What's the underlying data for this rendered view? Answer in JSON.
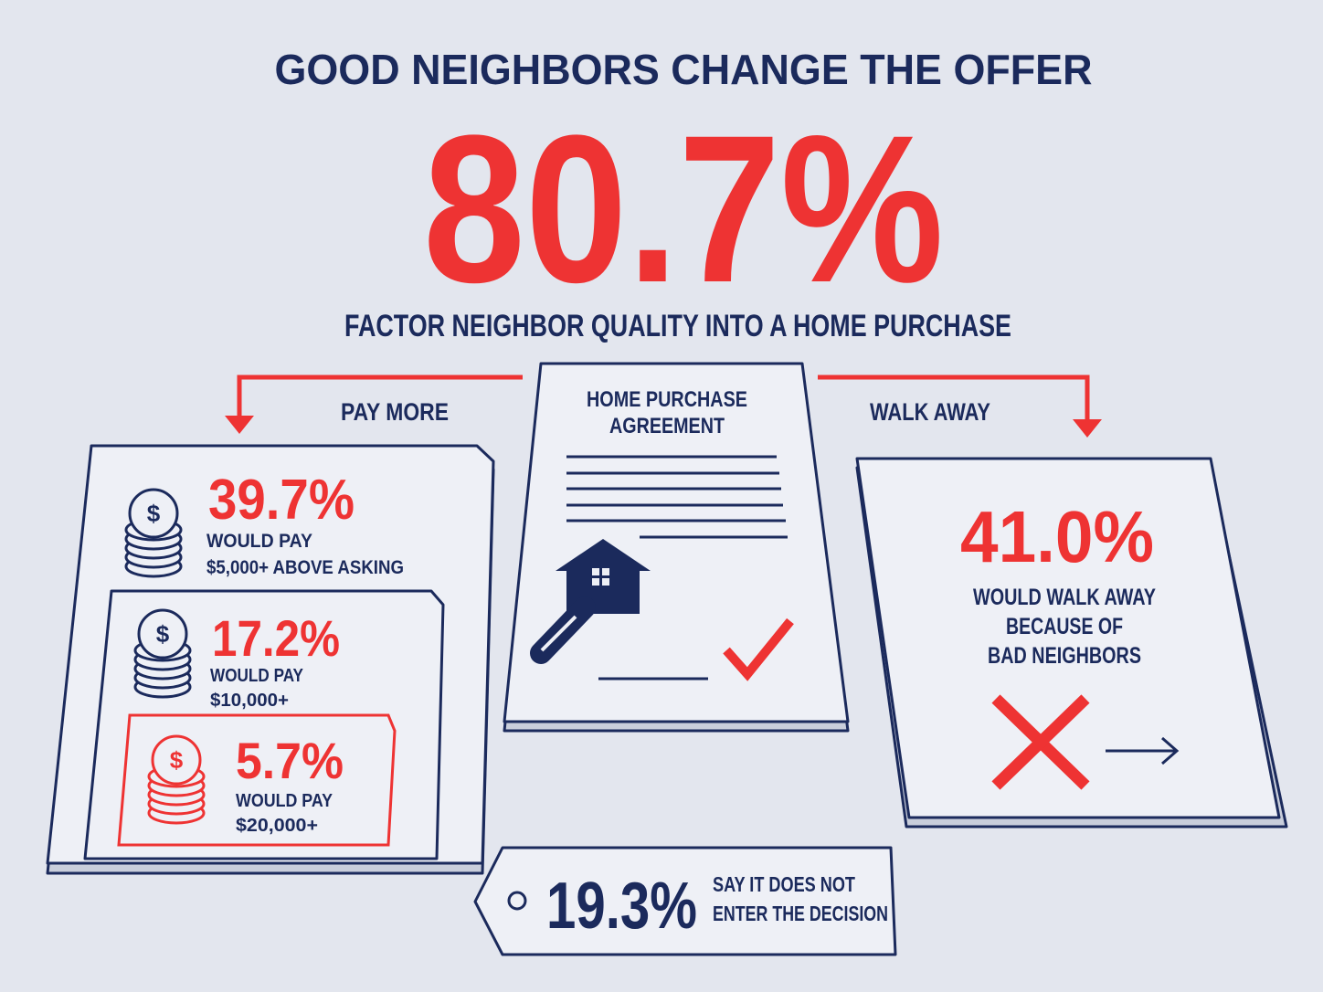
{
  "title": "GOOD NEIGHBORS CHANGE THE OFFER",
  "headline": {
    "stat": "80.7%",
    "caption": "FACTOR NEIGHBOR QUALITY INTO A HOME PURCHASE"
  },
  "branches": {
    "left": "PAY MORE",
    "right": "WALK AWAY"
  },
  "pay_more": [
    {
      "stat": "39.7%",
      "lines": [
        "WOULD PAY",
        "$5,000+ ABOVE ASKING"
      ]
    },
    {
      "stat": "17.2%",
      "lines": [
        "WOULD PAY",
        "$10,000+"
      ]
    },
    {
      "stat": "5.7%",
      "lines": [
        "WOULD PAY",
        "$20,000+"
      ]
    }
  ],
  "document": {
    "title": [
      "HOME PURCHASE",
      "AGREEMENT"
    ]
  },
  "walk_away": {
    "stat": "41.0%",
    "lines": [
      "WOULD WALK AWAY",
      "BECAUSE OF",
      "BAD NEIGHBORS"
    ]
  },
  "tag": {
    "stat": "19.3%",
    "lines": [
      "SAY IT DOES NOT",
      "ENTER THE DECISION"
    ]
  }
}
